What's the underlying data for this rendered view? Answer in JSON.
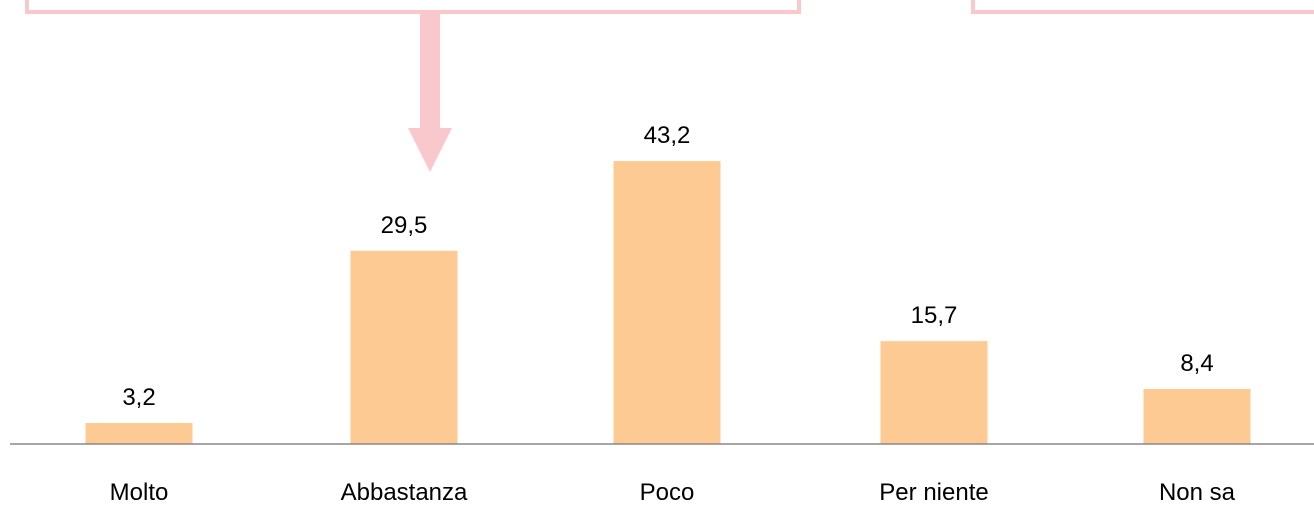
{
  "colors": {
    "bar": "#FDCA94",
    "callout_border": "#F8C8CC",
    "callout_arrow": "#F8C8CC",
    "axis": "#888888"
  },
  "chart_data": {
    "type": "bar",
    "categories": [
      "Molto",
      "Abbastanza",
      "Poco",
      "Per niente",
      "Non sa"
    ],
    "values": [
      3.2,
      29.5,
      43.2,
      15.7,
      8.4
    ],
    "value_labels": [
      "3,2",
      "29,5",
      "43,2",
      "15,7",
      "8,4"
    ],
    "title": "",
    "xlabel": "",
    "ylabel": "",
    "ylim": [
      0,
      45
    ],
    "grid": false,
    "legend": "none"
  }
}
